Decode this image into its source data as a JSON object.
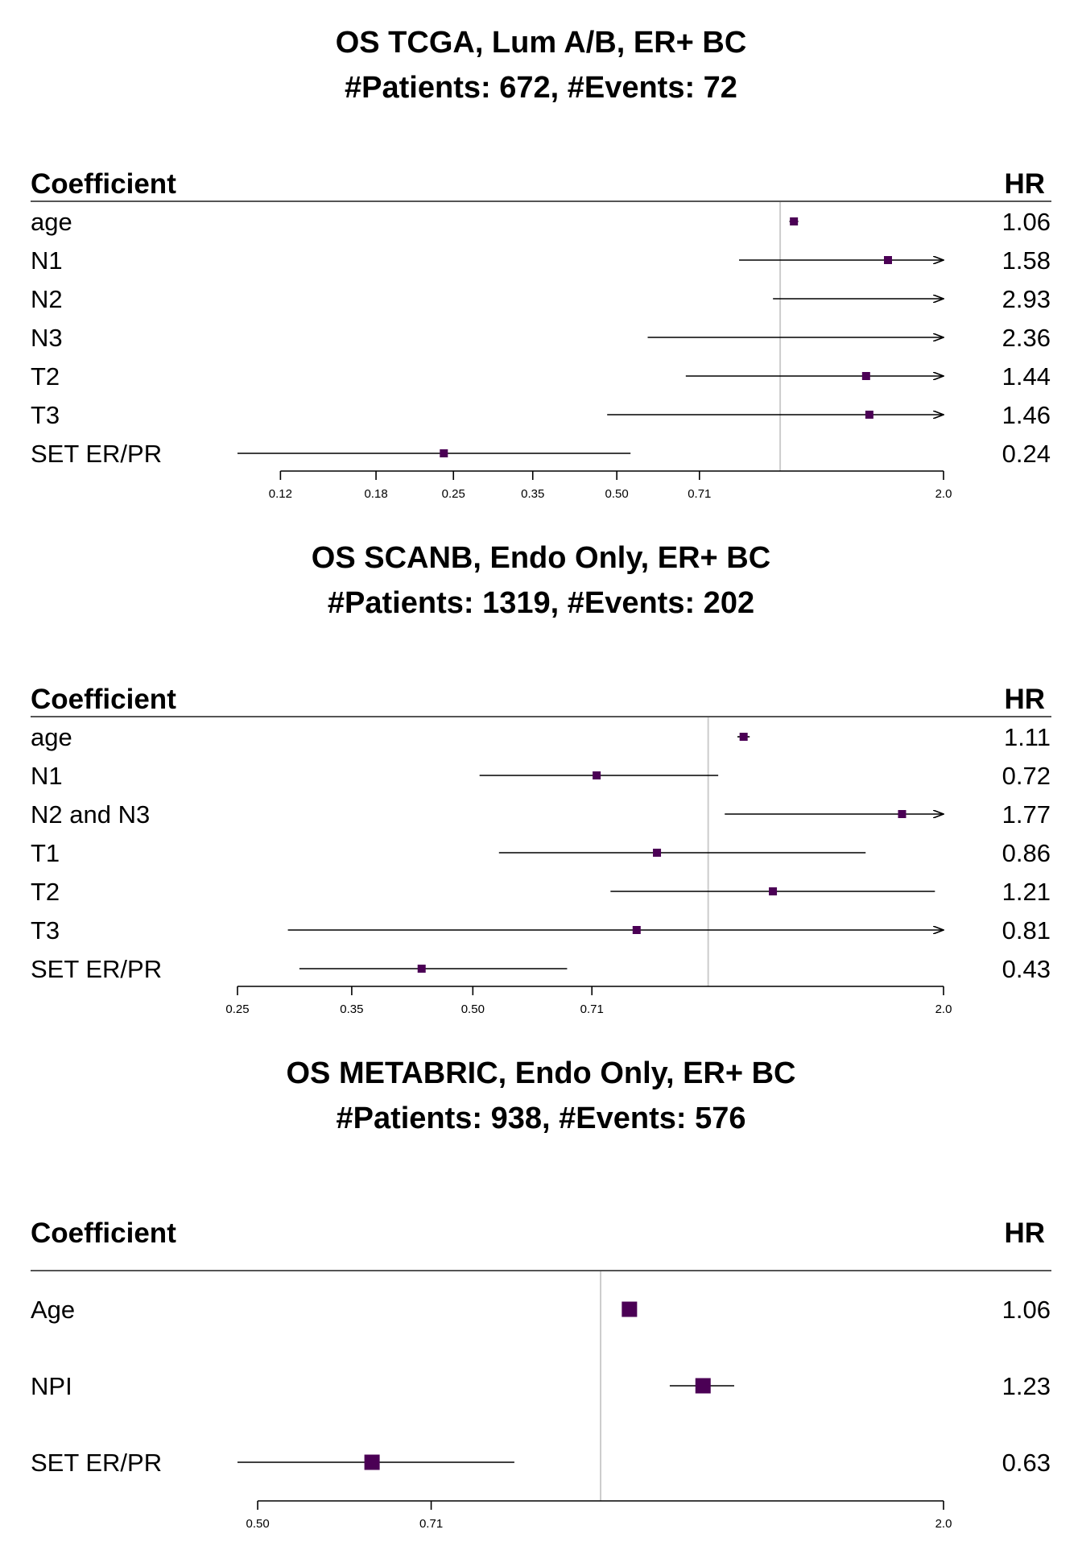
{
  "colors": {
    "marker": "#4b0055",
    "ref_line": "#cccccc",
    "line": "#000000",
    "header_rule": "#555555"
  },
  "chart_data": [
    {
      "type": "forest",
      "title": "OS TCGA, Lum A/B, ER+ BC",
      "subtitle": "#Patients: 672, #Events: 72",
      "col_left": "Coefficient",
      "col_right": "HR",
      "scale": "log",
      "xlim": [
        0.1,
        2.0
      ],
      "xticks": [
        0.12,
        0.18,
        0.25,
        0.35,
        0.5,
        0.71,
        2.0
      ],
      "xtick_labels": [
        "0.12",
        "0.18",
        "0.25",
        "0.35",
        "0.50",
        "0.71",
        "2.0"
      ],
      "ref_value": 1,
      "rows": [
        {
          "label": "age",
          "hr": 1.06,
          "lo": 1.04,
          "hi": 1.08,
          "arrow": false
        },
        {
          "label": "N1",
          "hr": 1.58,
          "lo": 0.84,
          "hi": 2.0,
          "arrow": true
        },
        {
          "label": "N2",
          "hr": 2.93,
          "lo": 0.97,
          "hi": 2.0,
          "arrow": true
        },
        {
          "label": "N3",
          "hr": 2.36,
          "lo": 0.57,
          "hi": 2.0,
          "arrow": true
        },
        {
          "label": "T2",
          "hr": 1.44,
          "lo": 0.67,
          "hi": 2.0,
          "arrow": true
        },
        {
          "label": "T3",
          "hr": 1.46,
          "lo": 0.48,
          "hi": 2.0,
          "arrow": true
        },
        {
          "label": "SET ER/PR",
          "hr": 0.24,
          "lo": 0.1,
          "hi": 0.53,
          "arrow": false
        }
      ]
    },
    {
      "type": "forest",
      "title": "OS SCANB, Endo Only, ER+ BC",
      "subtitle": "#Patients: 1319, #Events: 202",
      "col_left": "Coefficient",
      "col_right": "HR",
      "scale": "log",
      "xlim": [
        0.25,
        2.0
      ],
      "xticks": [
        0.25,
        0.35,
        0.5,
        0.71,
        2.0
      ],
      "xtick_labels": [
        "0.25",
        "0.35",
        "0.50",
        "0.71",
        "2.0"
      ],
      "ref_value": 1,
      "rows": [
        {
          "label": "age",
          "hr": 1.11,
          "lo": 1.09,
          "hi": 1.13,
          "arrow": false
        },
        {
          "label": "N1",
          "hr": 0.72,
          "lo": 0.51,
          "hi": 1.03,
          "arrow": false
        },
        {
          "label": "N2 and N3",
          "hr": 1.77,
          "lo": 1.05,
          "hi": 2.0,
          "arrow": true
        },
        {
          "label": "T1",
          "hr": 0.86,
          "lo": 0.54,
          "hi": 1.59,
          "arrow": false
        },
        {
          "label": "T2",
          "hr": 1.21,
          "lo": 0.75,
          "hi": 1.95,
          "arrow": false
        },
        {
          "label": "T3",
          "hr": 0.81,
          "lo": 0.29,
          "hi": 2.0,
          "arrow": true
        },
        {
          "label": "SET ER/PR",
          "hr": 0.43,
          "lo": 0.3,
          "hi": 0.66,
          "arrow": false
        }
      ]
    },
    {
      "type": "forest",
      "title": "OS METABRIC, Endo Only, ER+ BC",
      "subtitle": "#Patients: 938, #Events: 576",
      "col_left": "Coefficient",
      "col_right": "HR",
      "scale": "log",
      "xlim": [
        0.48,
        2.0
      ],
      "xticks": [
        0.5,
        0.71,
        2.0
      ],
      "xtick_labels": [
        "0.50",
        "0.71",
        "2.0"
      ],
      "ref_value": 1,
      "rows": [
        {
          "label": "Age",
          "hr": 1.06,
          "lo": 1.06,
          "hi": 1.06,
          "arrow": false
        },
        {
          "label": "NPI",
          "hr": 1.23,
          "lo": 1.15,
          "hi": 1.31,
          "arrow": false
        },
        {
          "label": "SET ER/PR",
          "hr": 0.63,
          "lo": 0.48,
          "hi": 0.84,
          "arrow": false
        }
      ]
    }
  ]
}
